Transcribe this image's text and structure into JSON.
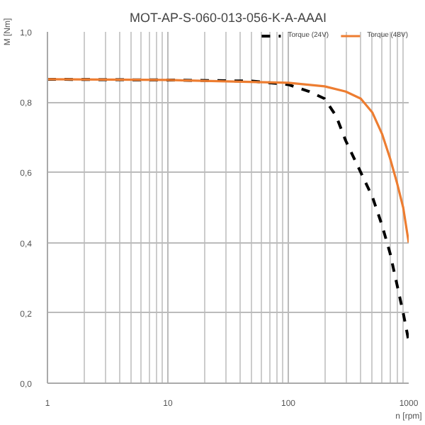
{
  "chart_data": {
    "type": "line",
    "title": "MOT-AP-S-060-013-056-K-A-AAAI",
    "xlabel": "n [rpm]",
    "ylabel": "M [Nm]",
    "log": "x",
    "grid": true,
    "legend": "top",
    "marker": "none",
    "xlim": [
      1,
      1000
    ],
    "xticks": [
      1,
      10,
      100,
      1000
    ],
    "ylim": [
      0,
      1
    ],
    "yticks": [
      {
        "value": 0,
        "label": "0,0"
      },
      {
        "value": 0.2,
        "label": "0,2"
      },
      {
        "value": 0.4,
        "label": "0,4"
      },
      {
        "value": 0.6,
        "label": "0,6"
      },
      {
        "value": 0.8,
        "label": "0,8"
      },
      {
        "value": 1,
        "label": "1,0"
      }
    ],
    "series": [
      {
        "name": "Torque (24V)",
        "color": "#000000",
        "line_style": "dashed",
        "x": [
          1,
          10,
          50,
          100,
          150,
          200,
          250,
          300,
          400,
          500,
          600,
          700,
          800,
          900,
          1000
        ],
        "values": [
          0.865,
          0.863,
          0.86,
          0.85,
          0.83,
          0.81,
          0.76,
          0.69,
          0.6,
          0.53,
          0.45,
          0.37,
          0.28,
          0.2,
          0.12
        ]
      },
      {
        "name": "Torque (48V)",
        "color": "#ed7d31",
        "line_style": "solid",
        "x": [
          1,
          10,
          100,
          200,
          300,
          400,
          500,
          600,
          700,
          800,
          900,
          1000
        ],
        "values": [
          0.865,
          0.863,
          0.855,
          0.845,
          0.83,
          0.81,
          0.77,
          0.71,
          0.64,
          0.57,
          0.5,
          0.4
        ]
      }
    ]
  }
}
